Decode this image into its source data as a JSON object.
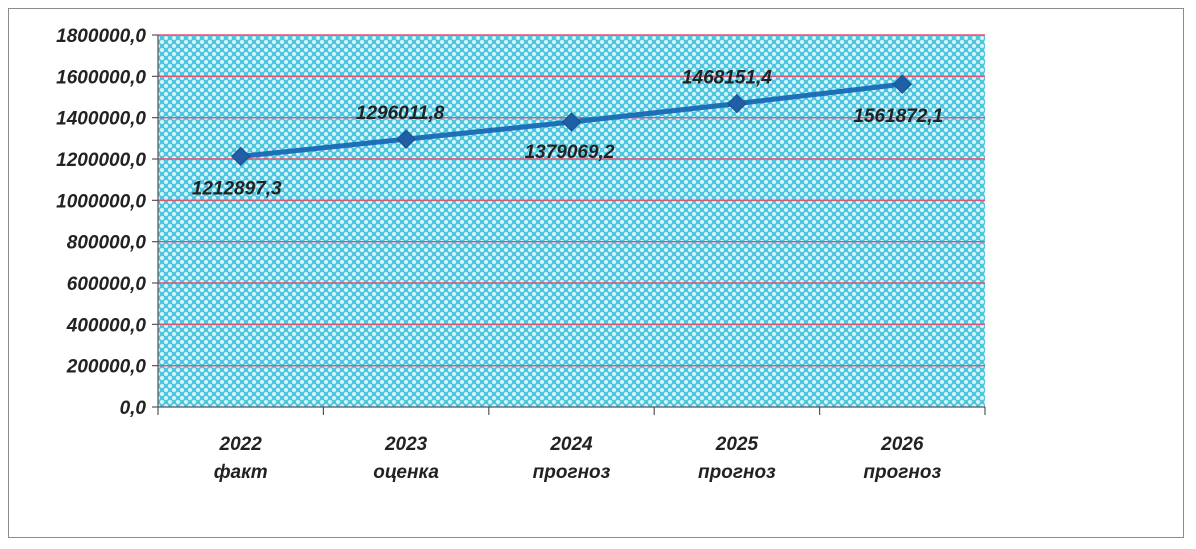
{
  "chart_data": {
    "type": "line",
    "categories": [
      [
        "2022",
        "факт"
      ],
      [
        "2023",
        "оценка"
      ],
      [
        "2024",
        "прогноз"
      ],
      [
        "2025",
        "прогноз"
      ],
      [
        "2026",
        "прогноз"
      ]
    ],
    "values": [
      1212897.3,
      1296011.8,
      1379069.2,
      1468151.4,
      1561872.1
    ],
    "data_labels": [
      "1212897,3",
      "1296011,8",
      "1379069,2",
      "1468151,4",
      "1561872,1"
    ],
    "y_ticks": [
      "0,0",
      "200000,0",
      "400000,0",
      "600000,0",
      "800000,0",
      "1000000,0",
      "1200000,0",
      "1400000,0",
      "1600000,0",
      "1800000,0"
    ],
    "ylim": [
      0,
      1800000
    ],
    "title": "",
    "xlabel": "",
    "ylabel": "",
    "grid": true,
    "legend": "none",
    "colors": {
      "plot_background": "#4fc6e0",
      "plot_pattern_dots": "#d8f3fa",
      "gridline": "#e0526f",
      "series_line": "#1f6fb8",
      "marker": "#1f5fa8",
      "axis": "#555555",
      "text": "#222222"
    }
  }
}
